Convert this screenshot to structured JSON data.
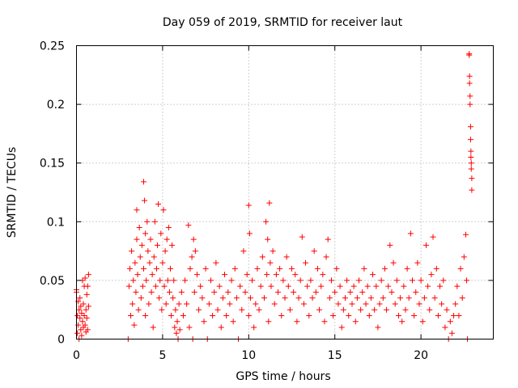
{
  "chart_data": {
    "type": "scatter",
    "title": "Day 059 of 2019, SRMTID for receiver laut",
    "xlabel": "GPS time / hours",
    "ylabel": "SRMTID / TECUs",
    "xlim": [
      0,
      24.2
    ],
    "ylim": [
      0,
      0.25
    ],
    "xticks": [
      0,
      5,
      10,
      15,
      20
    ],
    "xtick_labels": [
      "0",
      "5",
      "10",
      "15",
      "20"
    ],
    "yticks": [
      0,
      0.05,
      0.1,
      0.15,
      0.2,
      0.25
    ],
    "ytick_labels": [
      "0",
      "0.05",
      "0.1",
      "0.15",
      "0.2",
      "0.25"
    ],
    "grid": true,
    "marker": "+",
    "color": "#ff0000",
    "series": [
      {
        "name": "SRMTID",
        "points": [
          [
            0.0,
            0.04
          ],
          [
            0.0,
            0.042
          ],
          [
            0.05,
            0.02
          ],
          [
            0.05,
            0.005
          ],
          [
            0.1,
            0.032
          ],
          [
            0.1,
            0.012
          ],
          [
            0.15,
            0.025
          ],
          [
            0.15,
            0.0
          ],
          [
            0.2,
            0.018
          ],
          [
            0.2,
            0.035
          ],
          [
            0.25,
            0.008
          ],
          [
            0.25,
            0.028
          ],
          [
            0.3,
            0.022
          ],
          [
            0.3,
            0.003
          ],
          [
            0.35,
            0.015
          ],
          [
            0.35,
            0.05
          ],
          [
            0.4,
            0.03
          ],
          [
            0.4,
            0.01
          ],
          [
            0.45,
            0.045
          ],
          [
            0.45,
            0.02
          ],
          [
            0.5,
            0.012
          ],
          [
            0.5,
            0.052
          ],
          [
            0.55,
            0.025
          ],
          [
            0.55,
            0.006
          ],
          [
            0.6,
            0.038
          ],
          [
            0.6,
            0.018
          ],
          [
            0.65,
            0.045
          ],
          [
            0.65,
            0.008
          ],
          [
            0.7,
            0.055
          ],
          [
            0.7,
            0.028
          ],
          [
            3.0,
            0.0
          ],
          [
            3.05,
            0.045
          ],
          [
            3.1,
            0.06
          ],
          [
            3.15,
            0.02
          ],
          [
            3.2,
            0.075
          ],
          [
            3.25,
            0.03
          ],
          [
            3.3,
            0.05
          ],
          [
            3.35,
            0.012
          ],
          [
            3.4,
            0.065
          ],
          [
            3.45,
            0.04
          ],
          [
            3.5,
            0.11
          ],
          [
            3.5,
            0.085
          ],
          [
            3.55,
            0.055
          ],
          [
            3.6,
            0.025
          ],
          [
            3.65,
            0.095
          ],
          [
            3.7,
            0.07
          ],
          [
            3.75,
            0.035
          ],
          [
            3.8,
            0.08
          ],
          [
            3.85,
            0.045
          ],
          [
            3.9,
            0.134
          ],
          [
            3.9,
            0.06
          ],
          [
            3.95,
            0.118
          ],
          [
            4.0,
            0.09
          ],
          [
            4.0,
            0.02
          ],
          [
            4.05,
            0.05
          ],
          [
            4.1,
            0.1
          ],
          [
            4.15,
            0.075
          ],
          [
            4.2,
            0.03
          ],
          [
            4.25,
            0.065
          ],
          [
            4.3,
            0.085
          ],
          [
            4.35,
            0.04
          ],
          [
            4.4,
            0.055
          ],
          [
            4.45,
            0.01
          ],
          [
            4.5,
            0.07
          ],
          [
            4.55,
            0.1
          ],
          [
            4.6,
            0.045
          ],
          [
            4.65,
            0.06
          ],
          [
            4.7,
            0.08
          ],
          [
            4.75,
            0.115
          ],
          [
            4.8,
            0.035
          ],
          [
            4.85,
            0.05
          ],
          [
            4.9,
            0.09
          ],
          [
            4.95,
            0.025
          ],
          [
            5.0,
            0.065
          ],
          [
            5.05,
            0.11
          ],
          [
            5.1,
            0.045
          ],
          [
            5.15,
            0.075
          ],
          [
            5.2,
            0.03
          ],
          [
            5.25,
            0.085
          ],
          [
            5.3,
            0.05
          ],
          [
            5.35,
            0.095
          ],
          [
            5.4,
            0.04
          ],
          [
            5.45,
            0.06
          ],
          [
            5.5,
            0.02
          ],
          [
            5.55,
            0.08
          ],
          [
            5.6,
            0.035
          ],
          [
            5.65,
            0.05
          ],
          [
            5.7,
            0.01
          ],
          [
            5.75,
            0.025
          ],
          [
            5.8,
            0.005
          ],
          [
            5.85,
            0.015
          ],
          [
            5.9,
            0.0
          ],
          [
            5.95,
            0.03
          ],
          [
            6.0,
            0.008
          ],
          [
            6.1,
            0.04
          ],
          [
            6.2,
            0.02
          ],
          [
            6.3,
            0.05
          ],
          [
            6.4,
            0.03
          ],
          [
            6.5,
            0.097
          ],
          [
            6.55,
            0.01
          ],
          [
            6.6,
            0.06
          ],
          [
            6.7,
            0.07
          ],
          [
            6.75,
            0.0
          ],
          [
            6.8,
            0.085
          ],
          [
            6.85,
            0.04
          ],
          [
            6.9,
            0.075
          ],
          [
            7.0,
            0.055
          ],
          [
            7.1,
            0.025
          ],
          [
            7.2,
            0.045
          ],
          [
            7.3,
            0.035
          ],
          [
            7.4,
            0.015
          ],
          [
            7.5,
            0.06
          ],
          [
            7.6,
            0.0
          ],
          [
            7.7,
            0.03
          ],
          [
            7.8,
            0.05
          ],
          [
            7.9,
            0.02
          ],
          [
            8.0,
            0.04
          ],
          [
            8.1,
            0.065
          ],
          [
            8.2,
            0.025
          ],
          [
            8.3,
            0.045
          ],
          [
            8.4,
            0.01
          ],
          [
            8.5,
            0.035
          ],
          [
            8.6,
            0.055
          ],
          [
            8.7,
            0.02
          ],
          [
            8.8,
            0.04
          ],
          [
            8.9,
            0.03
          ],
          [
            9.0,
            0.05
          ],
          [
            9.1,
            0.015
          ],
          [
            9.2,
            0.06
          ],
          [
            9.3,
            0.035
          ],
          [
            9.4,
            0.0
          ],
          [
            9.5,
            0.045
          ],
          [
            9.6,
            0.025
          ],
          [
            9.7,
            0.075
          ],
          [
            9.8,
            0.04
          ],
          [
            9.9,
            0.055
          ],
          [
            10.0,
            0.114
          ],
          [
            10.0,
            0.02
          ],
          [
            10.05,
            0.09
          ],
          [
            10.1,
            0.035
          ],
          [
            10.2,
            0.05
          ],
          [
            10.3,
            0.01
          ],
          [
            10.4,
            0.03
          ],
          [
            10.5,
            0.06
          ],
          [
            10.6,
            0.025
          ],
          [
            10.7,
            0.045
          ],
          [
            10.8,
            0.07
          ],
          [
            10.9,
            0.035
          ],
          [
            11.0,
            0.1
          ],
          [
            11.05,
            0.055
          ],
          [
            11.1,
            0.085
          ],
          [
            11.15,
            0.015
          ],
          [
            11.2,
            0.116
          ],
          [
            11.25,
            0.065
          ],
          [
            11.3,
            0.045
          ],
          [
            11.4,
            0.075
          ],
          [
            11.5,
            0.03
          ],
          [
            11.6,
            0.055
          ],
          [
            11.7,
            0.04
          ],
          [
            11.8,
            0.06
          ],
          [
            11.9,
            0.02
          ],
          [
            12.0,
            0.05
          ],
          [
            12.1,
            0.035
          ],
          [
            12.2,
            0.07
          ],
          [
            12.3,
            0.045
          ],
          [
            12.4,
            0.025
          ],
          [
            12.5,
            0.06
          ],
          [
            12.6,
            0.04
          ],
          [
            12.7,
            0.055
          ],
          [
            12.8,
            0.015
          ],
          [
            12.9,
            0.035
          ],
          [
            13.0,
            0.05
          ],
          [
            13.1,
            0.087
          ],
          [
            13.2,
            0.03
          ],
          [
            13.3,
            0.065
          ],
          [
            13.4,
            0.045
          ],
          [
            13.5,
            0.02
          ],
          [
            13.6,
            0.05
          ],
          [
            13.7,
            0.035
          ],
          [
            13.8,
            0.075
          ],
          [
            13.9,
            0.04
          ],
          [
            14.0,
            0.06
          ],
          [
            14.1,
            0.025
          ],
          [
            14.2,
            0.045
          ],
          [
            14.3,
            0.055
          ],
          [
            14.4,
            0.015
          ],
          [
            14.5,
            0.07
          ],
          [
            14.6,
            0.085
          ],
          [
            14.7,
            0.035
          ],
          [
            14.8,
            0.05
          ],
          [
            14.9,
            0.02
          ],
          [
            15.0,
            0.04
          ],
          [
            15.1,
            0.06
          ],
          [
            15.2,
            0.03
          ],
          [
            15.3,
            0.045
          ],
          [
            15.4,
            0.01
          ],
          [
            15.5,
            0.025
          ],
          [
            15.6,
            0.035
          ],
          [
            15.7,
            0.05
          ],
          [
            15.8,
            0.02
          ],
          [
            15.9,
            0.04
          ],
          [
            16.0,
            0.03
          ],
          [
            16.1,
            0.045
          ],
          [
            16.2,
            0.015
          ],
          [
            16.3,
            0.035
          ],
          [
            16.4,
            0.05
          ],
          [
            16.5,
            0.025
          ],
          [
            16.6,
            0.04
          ],
          [
            16.7,
            0.06
          ],
          [
            16.8,
            0.03
          ],
          [
            16.9,
            0.045
          ],
          [
            17.0,
            0.02
          ],
          [
            17.1,
            0.035
          ],
          [
            17.2,
            0.055
          ],
          [
            17.3,
            0.025
          ],
          [
            17.4,
            0.045
          ],
          [
            17.5,
            0.01
          ],
          [
            17.6,
            0.03
          ],
          [
            17.7,
            0.05
          ],
          [
            17.8,
            0.035
          ],
          [
            17.9,
            0.06
          ],
          [
            18.0,
            0.025
          ],
          [
            18.1,
            0.045
          ],
          [
            18.2,
            0.08
          ],
          [
            18.3,
            0.04
          ],
          [
            18.4,
            0.065
          ],
          [
            18.5,
            0.03
          ],
          [
            18.6,
            0.05
          ],
          [
            18.7,
            0.02
          ],
          [
            18.8,
            0.035
          ],
          [
            18.9,
            0.015
          ],
          [
            19.0,
            0.045
          ],
          [
            19.1,
            0.025
          ],
          [
            19.2,
            0.06
          ],
          [
            19.3,
            0.035
          ],
          [
            19.4,
            0.09
          ],
          [
            19.5,
            0.05
          ],
          [
            19.6,
            0.02
          ],
          [
            19.7,
            0.04
          ],
          [
            19.8,
            0.065
          ],
          [
            19.9,
            0.03
          ],
          [
            20.0,
            0.05
          ],
          [
            20.1,
            0.015
          ],
          [
            20.2,
            0.035
          ],
          [
            20.3,
            0.08
          ],
          [
            20.4,
            0.045
          ],
          [
            20.5,
            0.025
          ],
          [
            20.6,
            0.055
          ],
          [
            20.7,
            0.087
          ],
          [
            20.8,
            0.035
          ],
          [
            20.9,
            0.06
          ],
          [
            21.0,
            0.02
          ],
          [
            21.1,
            0.045
          ],
          [
            21.2,
            0.03
          ],
          [
            21.3,
            0.05
          ],
          [
            21.4,
            0.01
          ],
          [
            21.5,
            0.025
          ],
          [
            21.6,
            0.0
          ],
          [
            21.7,
            0.015
          ],
          [
            21.8,
            0.005
          ],
          [
            21.9,
            0.02
          ],
          [
            22.0,
            0.03
          ],
          [
            22.1,
            0.045
          ],
          [
            22.2,
            0.02
          ],
          [
            22.3,
            0.06
          ],
          [
            22.4,
            0.035
          ],
          [
            22.5,
            0.07
          ],
          [
            22.6,
            0.089
          ],
          [
            22.65,
            0.05
          ],
          [
            22.7,
            0.0
          ],
          [
            22.8,
            0.243
          ],
          [
            22.8,
            0.242
          ],
          [
            22.82,
            0.224
          ],
          [
            22.82,
            0.218
          ],
          [
            22.85,
            0.207
          ],
          [
            22.85,
            0.2
          ],
          [
            22.88,
            0.181
          ],
          [
            22.88,
            0.17
          ],
          [
            22.9,
            0.16
          ],
          [
            22.9,
            0.155
          ],
          [
            22.92,
            0.15
          ],
          [
            22.92,
            0.145
          ],
          [
            22.95,
            0.137
          ],
          [
            22.95,
            0.127
          ]
        ]
      }
    ]
  }
}
